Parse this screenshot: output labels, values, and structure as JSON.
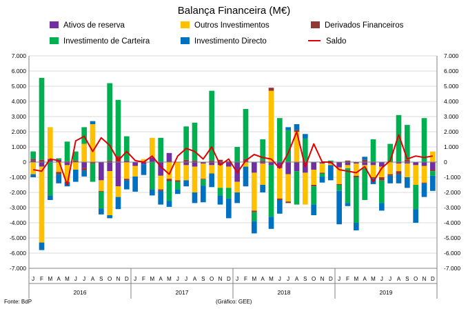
{
  "chart_data": {
    "type": "bar",
    "subtype": "stacked-bar-with-line",
    "title": "Balança Financeira (M€)",
    "source": "Fonte: BdP",
    "credit": "(Gráfico: GEE)",
    "ylim": [
      -7000,
      7000
    ],
    "ytick_labels": [
      "7.000",
      "6.000",
      "5.000",
      "4.000",
      "3.000",
      "2.000",
      "1.000",
      "0",
      "-1.000",
      "-2.000",
      "-3.000",
      "-4.000",
      "-5.000",
      "-6.000",
      "-7.000"
    ],
    "ytick_values": [
      7000,
      6000,
      5000,
      4000,
      3000,
      2000,
      1000,
      0,
      -1000,
      -2000,
      -3000,
      -4000,
      -5000,
      -6000,
      -7000
    ],
    "categories": [
      "J",
      "F",
      "M",
      "A",
      "M",
      "J",
      "J",
      "A",
      "S",
      "O",
      "N",
      "D",
      "J",
      "F",
      "M",
      "A",
      "M",
      "J",
      "J",
      "A",
      "S",
      "O",
      "N",
      "D",
      "J",
      "F",
      "M",
      "A",
      "M",
      "J",
      "J",
      "A",
      "S",
      "O",
      "N",
      "D",
      "J",
      "F",
      "M",
      "A",
      "M",
      "J",
      "J",
      "A",
      "S",
      "O",
      "N",
      "D"
    ],
    "years": [
      "2016",
      "2017",
      "2018",
      "2019"
    ],
    "colors": {
      "reserves": "#7030a0",
      "other": "#ffc000",
      "derivatives": "#943634",
      "portfolio": "#00b050",
      "direct": "#0070c0",
      "saldo": "#e00000"
    },
    "series": [
      {
        "key": "reserves",
        "name": "Ativos de reserva",
        "values": [
          100,
          -300,
          200,
          150,
          -200,
          0,
          -400,
          0,
          -1200,
          -600,
          -1600,
          100,
          -250,
          -150,
          300,
          -900,
          600,
          0,
          -200,
          -300,
          -100,
          -200,
          -200,
          -300,
          -1300,
          100,
          -700,
          -100,
          -200,
          -400,
          -800,
          -600,
          -700,
          -500,
          -100,
          -100,
          -350,
          -200,
          -100,
          -200,
          -200,
          -300,
          0,
          -100,
          -100,
          -200,
          -250,
          -500
        ]
      },
      {
        "key": "other",
        "name": "Outros Investimentos",
        "values": [
          -800,
          -5000,
          2100,
          -650,
          -1100,
          -500,
          1200,
          2500,
          -700,
          -2900,
          -700,
          -1100,
          -700,
          200,
          1300,
          -900,
          -1100,
          -1200,
          -1000,
          -1700,
          -1000,
          -550,
          -1500,
          -1400,
          -700,
          -300,
          -2500,
          -1400,
          4700,
          -2000,
          -1800,
          2000,
          -2100,
          -1000,
          -600,
          -100,
          -1100,
          -200,
          -800,
          -200,
          -800,
          -700,
          -800,
          -500,
          -900,
          -1300,
          -1100,
          700
        ]
      },
      {
        "key": "derivatives",
        "name": "Derivados Financeiros",
        "values": [
          100,
          150,
          0,
          -150,
          50,
          100,
          -150,
          -100,
          -50,
          100,
          400,
          -100,
          0,
          0,
          0,
          -100,
          -150,
          -100,
          150,
          100,
          -50,
          100,
          150,
          50,
          0,
          100,
          -100,
          100,
          200,
          -100,
          -100,
          100,
          50,
          -100,
          -50,
          0,
          -50,
          100,
          -100,
          150,
          -50,
          -200,
          -100,
          -200,
          150,
          0,
          -50,
          -100
        ]
      },
      {
        "key": "portfolio",
        "name": "Investimento de Carteira",
        "values": [
          500,
          5400,
          -2200,
          100,
          1300,
          600,
          1100,
          -1200,
          -1100,
          5100,
          3700,
          1600,
          0,
          0,
          -1800,
          1600,
          -1300,
          -500,
          2200,
          2500,
          -400,
          4600,
          -500,
          -700,
          1000,
          3300,
          -600,
          1400,
          -3400,
          2900,
          2100,
          -2200,
          1500,
          -1200,
          -200,
          100,
          -400,
          -2300,
          -3000,
          -2100,
          1500,
          -1500,
          1200,
          3100,
          2300,
          -1600,
          2900,
          -300
        ]
      },
      {
        "key": "direct",
        "name": "Investimento Directo",
        "values": [
          -200,
          -500,
          -300,
          -600,
          -300,
          -800,
          -400,
          200,
          -400,
          -200,
          -800,
          -600,
          -1000,
          -700,
          -400,
          -900,
          -400,
          -300,
          -400,
          -700,
          -1100,
          -900,
          -600,
          -1300,
          -700,
          -1300,
          -800,
          -500,
          -800,
          -900,
          200,
          400,
          300,
          -700,
          -400,
          -1000,
          -2200,
          -200,
          -500,
          200,
          -400,
          -500,
          -500,
          -600,
          -700,
          -900,
          -900,
          -1000
        ]
      }
    ],
    "saldo": {
      "name": "Saldo",
      "values": [
        -500,
        -600,
        200,
        100,
        -1500,
        1400,
        1700,
        700,
        1600,
        1100,
        100,
        700,
        100,
        0,
        400,
        -300,
        -800,
        400,
        900,
        700,
        200,
        1000,
        -200,
        200,
        -700,
        100,
        500,
        300,
        200,
        -400,
        600,
        2000,
        -300,
        1200,
        0,
        0,
        -500,
        -600,
        -700,
        -300,
        -1300,
        -400,
        100,
        1800,
        200,
        400,
        300,
        400
      ]
    }
  }
}
